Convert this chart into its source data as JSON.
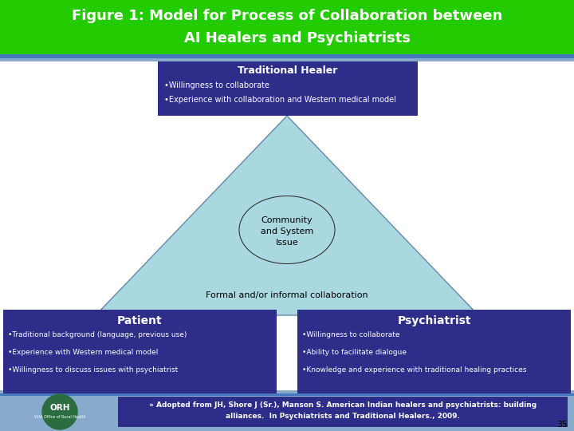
{
  "title_line1": "Figure 1: Model for Process of Collaboration between",
  "title_line2": "    AI Healers and Psychiatrists",
  "title_bg": "#22cc00",
  "title_color": "#ffffff",
  "trad_healer_title": "Traditional Healer",
  "trad_healer_bullets": [
    "•Willingness to collaborate",
    "•Experience with collaboration and Western medical model"
  ],
  "triangle_color": "#aad8e0",
  "triangle_edge_color": "#6688aa",
  "ellipse_edge_color": "#333333",
  "formal_text": "Formal and/or informal collaboration",
  "patient_title": "Patient",
  "patient_bullets": [
    "•Traditional background (language, previous use)",
    "•Experience with Western medical model",
    "•Willingness to discuss issues with psychiatrist"
  ],
  "psychiatrist_title": "Psychiatrist",
  "psychiatrist_bullets": [
    "•Willingness to collaborate",
    "•Ability to facilitate dialogue",
    "•Knowledge and experience with traditional healing practices"
  ],
  "box_bg": "#2e2e8a",
  "box_text_color": "#ffffff",
  "footer_text1": "» Adopted from JH, Shore J (Sr.), Manson S. American Indian healers and psychiatrists: building",
  "footer_text2": "alliances.  In Psychiatrists and Traditional Healers., 2009.",
  "footer_bg": "#2e2e8a",
  "slide_num": "35",
  "stripe_blue": "#4477bb",
  "stripe_lightblue": "#88aacc",
  "bg_color": "#ffffff",
  "main_bg": "#f0f0f0",
  "orh_green": "#2a6e3f"
}
